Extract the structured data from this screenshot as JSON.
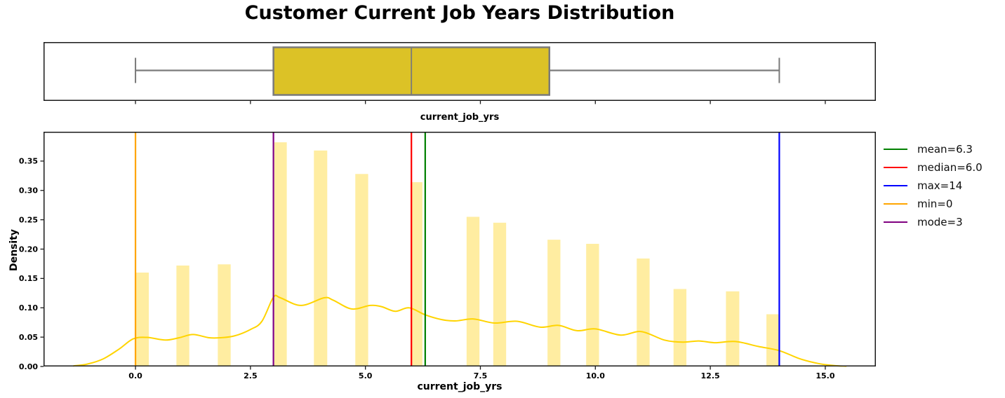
{
  "title": "Customer Current Job Years Distribution",
  "colors": {
    "box_fill": "#dcc226",
    "box_edge": "#7a7a7a",
    "bar_fill": "#ffeda1",
    "kde_line": "#ffd400",
    "mean_line": "#008000",
    "median_line": "#ff0000",
    "max_line": "#0000ff",
    "min_line": "#ffa500",
    "mode_line": "#800080",
    "spine": "#1a1a1a"
  },
  "legend": {
    "entries": [
      {
        "label": "mean=6.3",
        "color": "#008000",
        "name": "mean"
      },
      {
        "label": "median=6.0",
        "color": "#ff0000",
        "name": "median"
      },
      {
        "label": "max=14",
        "color": "#0000ff",
        "name": "max"
      },
      {
        "label": "min=0",
        "color": "#ffa500",
        "name": "min"
      },
      {
        "label": "mode=3",
        "color": "#800080",
        "name": "mode"
      }
    ]
  },
  "chart_data": [
    {
      "type": "box",
      "orientation": "horizontal",
      "xlabel": "current_job_yrs",
      "stats": {
        "whislo": 0,
        "q1": 3,
        "med": 6,
        "q3": 9,
        "whishi": 14
      },
      "xlim": [
        -2,
        16.1
      ],
      "xticks": [
        0.0,
        2.5,
        5.0,
        7.5,
        10.0,
        12.5,
        15.0
      ],
      "grid": false
    },
    {
      "type": "histogram+kde",
      "xlabel": "current_job_yrs",
      "ylabel": "Density",
      "xlim": [
        -2,
        16.1
      ],
      "ylim": [
        0,
        0.4
      ],
      "xticks": [
        0.0,
        2.5,
        5.0,
        7.5,
        10.0,
        12.5,
        15.0
      ],
      "yticks": [
        0.0,
        0.05,
        0.1,
        0.15,
        0.2,
        0.25,
        0.3,
        0.35
      ],
      "grid": false,
      "legend_position": "outside-upper-right",
      "bars": [
        {
          "x0": 0.01,
          "x1": 0.29,
          "value": 0,
          "density": 0.16
        },
        {
          "x0": 0.89,
          "x1": 1.17,
          "value": 1,
          "density": 0.172
        },
        {
          "x0": 1.79,
          "x1": 2.07,
          "value": 2,
          "density": 0.174
        },
        {
          "x0": 3.02,
          "x1": 3.29,
          "value": 3,
          "density": 0.382
        },
        {
          "x0": 3.88,
          "x1": 4.17,
          "value": 4,
          "density": 0.368
        },
        {
          "x0": 4.78,
          "x1": 5.06,
          "value": 5,
          "density": 0.328
        },
        {
          "x0": 5.98,
          "x1": 6.24,
          "value": 6,
          "density": 0.314
        },
        {
          "x0": 7.2,
          "x1": 7.48,
          "value": 7,
          "density": 0.255
        },
        {
          "x0": 7.78,
          "x1": 8.06,
          "value": 8,
          "density": 0.245
        },
        {
          "x0": 8.96,
          "x1": 9.24,
          "value": 9,
          "density": 0.216
        },
        {
          "x0": 9.8,
          "x1": 10.08,
          "value": 10,
          "density": 0.209
        },
        {
          "x0": 10.9,
          "x1": 11.18,
          "value": 11,
          "density": 0.184
        },
        {
          "x0": 11.7,
          "x1": 11.98,
          "value": 12,
          "density": 0.132
        },
        {
          "x0": 12.84,
          "x1": 13.13,
          "value": 13,
          "density": 0.128
        },
        {
          "x0": 13.72,
          "x1": 14.0,
          "value": 14,
          "density": 0.089
        }
      ],
      "kde": [
        [
          -1.35,
          0.001
        ],
        [
          -1.05,
          0.004
        ],
        [
          -0.7,
          0.013
        ],
        [
          -0.35,
          0.03
        ],
        [
          -0.05,
          0.047
        ],
        [
          0.25,
          0.0495
        ],
        [
          0.65,
          0.045
        ],
        [
          0.95,
          0.049
        ],
        [
          1.25,
          0.0545
        ],
        [
          1.6,
          0.049
        ],
        [
          1.85,
          0.049
        ],
        [
          2.15,
          0.052
        ],
        [
          2.5,
          0.063
        ],
        [
          2.75,
          0.077
        ],
        [
          3.0,
          0.118
        ],
        [
          3.15,
          0.117
        ],
        [
          3.6,
          0.104
        ],
        [
          4.1,
          0.117
        ],
        [
          4.3,
          0.113
        ],
        [
          4.7,
          0.098
        ],
        [
          5.1,
          0.104
        ],
        [
          5.35,
          0.102
        ],
        [
          5.65,
          0.094
        ],
        [
          5.95,
          0.1
        ],
        [
          6.3,
          0.088
        ],
        [
          6.65,
          0.08
        ],
        [
          6.95,
          0.0776
        ],
        [
          7.35,
          0.081
        ],
        [
          7.8,
          0.074
        ],
        [
          8.3,
          0.077
        ],
        [
          8.8,
          0.067
        ],
        [
          9.2,
          0.07
        ],
        [
          9.6,
          0.061
        ],
        [
          10.0,
          0.064
        ],
        [
          10.55,
          0.0535
        ],
        [
          11.0,
          0.0595
        ],
        [
          11.5,
          0.045
        ],
        [
          11.9,
          0.0415
        ],
        [
          12.25,
          0.0435
        ],
        [
          12.6,
          0.0405
        ],
        [
          13.05,
          0.0425
        ],
        [
          13.55,
          0.034
        ],
        [
          14.0,
          0.027
        ],
        [
          14.45,
          0.013
        ],
        [
          14.85,
          0.005
        ],
        [
          15.2,
          0.0015
        ],
        [
          15.45,
          0.0005
        ]
      ],
      "vlines": [
        {
          "name": "mean",
          "x": 6.3,
          "label": "mean=6.3",
          "color": "#008000"
        },
        {
          "name": "median",
          "x": 6.0,
          "label": "median=6.0",
          "color": "#ff0000"
        },
        {
          "name": "max",
          "x": 14,
          "label": "max=14",
          "color": "#0000ff"
        },
        {
          "name": "min",
          "x": 0,
          "label": "min=0",
          "color": "#ffa500"
        },
        {
          "name": "mode",
          "x": 3,
          "label": "mode=3",
          "color": "#800080"
        }
      ]
    }
  ]
}
